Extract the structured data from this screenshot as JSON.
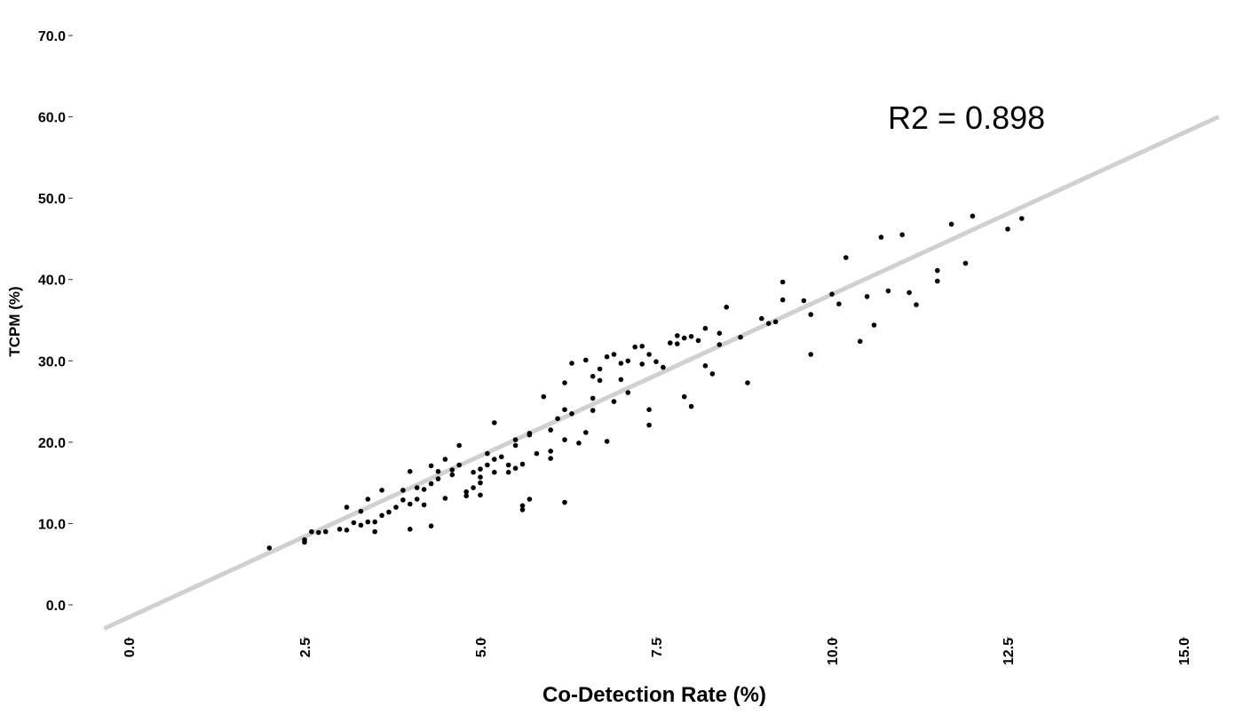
{
  "chart_data": {
    "type": "scatter",
    "title": "",
    "xlabel": "Co-Detection Rate (%)",
    "ylabel": "TCPM (%)",
    "xlim": [
      0,
      15
    ],
    "ylim": [
      0,
      70
    ],
    "x_ticks": [
      "0.0",
      "2.5",
      "5.0",
      "7.5",
      "10.0",
      "12.5",
      "15.0"
    ],
    "y_ticks": [
      "0.0",
      "10.0",
      "20.0",
      "30.0",
      "40.0",
      "50.0",
      "60.0",
      "70.0"
    ],
    "x_tick_values": [
      0,
      2.5,
      5,
      7.5,
      10,
      12.5,
      15
    ],
    "y_tick_values": [
      0,
      10,
      20,
      30,
      40,
      50,
      60,
      70
    ],
    "grid": false,
    "annotation": "R2 = 0.898",
    "trendline": {
      "slope": 3.97,
      "intercept": -1.53,
      "color": "#d0d0d0"
    },
    "point_color": "#000000",
    "points": [
      [
        2.0,
        7.0
      ],
      [
        2.5,
        7.7
      ],
      [
        2.5,
        8.0
      ],
      [
        2.6,
        9.0
      ],
      [
        2.7,
        8.9
      ],
      [
        2.8,
        9.0
      ],
      [
        3.0,
        9.3
      ],
      [
        3.1,
        9.2
      ],
      [
        3.1,
        12.0
      ],
      [
        3.2,
        10.1
      ],
      [
        3.3,
        9.8
      ],
      [
        3.3,
        11.5
      ],
      [
        3.4,
        13.0
      ],
      [
        3.4,
        10.2
      ],
      [
        3.5,
        10.2
      ],
      [
        3.5,
        9.0
      ],
      [
        3.6,
        11.0
      ],
      [
        3.6,
        14.1
      ],
      [
        3.7,
        11.4
      ],
      [
        3.8,
        12.0
      ],
      [
        3.9,
        12.9
      ],
      [
        3.9,
        14.1
      ],
      [
        4.0,
        12.4
      ],
      [
        4.0,
        16.4
      ],
      [
        4.0,
        9.3
      ],
      [
        4.1,
        13.0
      ],
      [
        4.1,
        14.4
      ],
      [
        4.2,
        14.2
      ],
      [
        4.2,
        12.3
      ],
      [
        4.3,
        14.9
      ],
      [
        4.3,
        17.1
      ],
      [
        4.3,
        9.7
      ],
      [
        4.4,
        16.4
      ],
      [
        4.4,
        15.5
      ],
      [
        4.5,
        17.9
      ],
      [
        4.5,
        13.1
      ],
      [
        4.6,
        16.6
      ],
      [
        4.6,
        16.0
      ],
      [
        4.7,
        17.2
      ],
      [
        4.7,
        19.6
      ],
      [
        4.8,
        13.4
      ],
      [
        4.8,
        13.9
      ],
      [
        4.9,
        16.3
      ],
      [
        4.9,
        14.4
      ],
      [
        5.0,
        15.0
      ],
      [
        5.0,
        13.5
      ],
      [
        5.0,
        15.7
      ],
      [
        5.0,
        16.7
      ],
      [
        5.1,
        17.2
      ],
      [
        5.1,
        18.6
      ],
      [
        5.2,
        16.3
      ],
      [
        5.2,
        17.9
      ],
      [
        5.2,
        22.4
      ],
      [
        5.3,
        18.2
      ],
      [
        5.4,
        17.2
      ],
      [
        5.4,
        16.3
      ],
      [
        5.5,
        20.3
      ],
      [
        5.5,
        16.8
      ],
      [
        5.5,
        19.6
      ],
      [
        5.6,
        17.3
      ],
      [
        5.6,
        11.7
      ],
      [
        5.6,
        12.2
      ],
      [
        5.7,
        13.0
      ],
      [
        5.7,
        21.1
      ],
      [
        5.7,
        20.9
      ],
      [
        5.8,
        18.6
      ],
      [
        5.9,
        25.6
      ],
      [
        6.0,
        18.0
      ],
      [
        6.0,
        18.9
      ],
      [
        6.0,
        21.5
      ],
      [
        6.1,
        22.9
      ],
      [
        6.2,
        24.0
      ],
      [
        6.2,
        20.3
      ],
      [
        6.2,
        27.3
      ],
      [
        6.3,
        23.5
      ],
      [
        6.3,
        29.7
      ],
      [
        6.4,
        19.9
      ],
      [
        6.2,
        12.6
      ],
      [
        6.5,
        21.2
      ],
      [
        6.5,
        30.1
      ],
      [
        6.6,
        23.9
      ],
      [
        6.6,
        25.4
      ],
      [
        6.6,
        28.1
      ],
      [
        6.7,
        27.6
      ],
      [
        6.7,
        29.0
      ],
      [
        6.8,
        30.5
      ],
      [
        6.8,
        20.1
      ],
      [
        6.9,
        25.0
      ],
      [
        6.9,
        30.8
      ],
      [
        7.0,
        29.7
      ],
      [
        7.0,
        27.7
      ],
      [
        7.1,
        30.0
      ],
      [
        7.1,
        26.1
      ],
      [
        7.2,
        31.7
      ],
      [
        7.3,
        29.6
      ],
      [
        7.3,
        31.8
      ],
      [
        7.4,
        30.8
      ],
      [
        7.4,
        24.0
      ],
      [
        7.4,
        22.1
      ],
      [
        7.5,
        29.9
      ],
      [
        7.6,
        29.2
      ],
      [
        7.7,
        32.2
      ],
      [
        7.8,
        33.1
      ],
      [
        7.8,
        32.1
      ],
      [
        7.9,
        32.8
      ],
      [
        7.9,
        25.6
      ],
      [
        8.0,
        33.0
      ],
      [
        8.0,
        24.4
      ],
      [
        8.1,
        32.5
      ],
      [
        8.2,
        29.4
      ],
      [
        8.2,
        34.0
      ],
      [
        8.3,
        28.4
      ],
      [
        8.4,
        32.0
      ],
      [
        8.4,
        33.4
      ],
      [
        8.5,
        36.6
      ],
      [
        8.7,
        32.9
      ],
      [
        8.8,
        27.3
      ],
      [
        9.0,
        35.2
      ],
      [
        9.1,
        34.6
      ],
      [
        9.2,
        34.8
      ],
      [
        9.3,
        39.7
      ],
      [
        9.3,
        37.5
      ],
      [
        9.6,
        37.4
      ],
      [
        9.7,
        35.7
      ],
      [
        9.7,
        30.8
      ],
      [
        10.0,
        38.2
      ],
      [
        10.1,
        37.0
      ],
      [
        10.2,
        42.7
      ],
      [
        10.4,
        32.4
      ],
      [
        10.5,
        37.9
      ],
      [
        10.6,
        34.4
      ],
      [
        10.7,
        45.2
      ],
      [
        10.8,
        38.6
      ],
      [
        11.0,
        45.5
      ],
      [
        11.1,
        38.4
      ],
      [
        11.2,
        36.9
      ],
      [
        11.5,
        41.1
      ],
      [
        11.5,
        39.8
      ],
      [
        11.7,
        46.8
      ],
      [
        11.9,
        42.0
      ],
      [
        12.0,
        47.8
      ],
      [
        12.5,
        46.2
      ],
      [
        12.7,
        47.5
      ]
    ]
  }
}
